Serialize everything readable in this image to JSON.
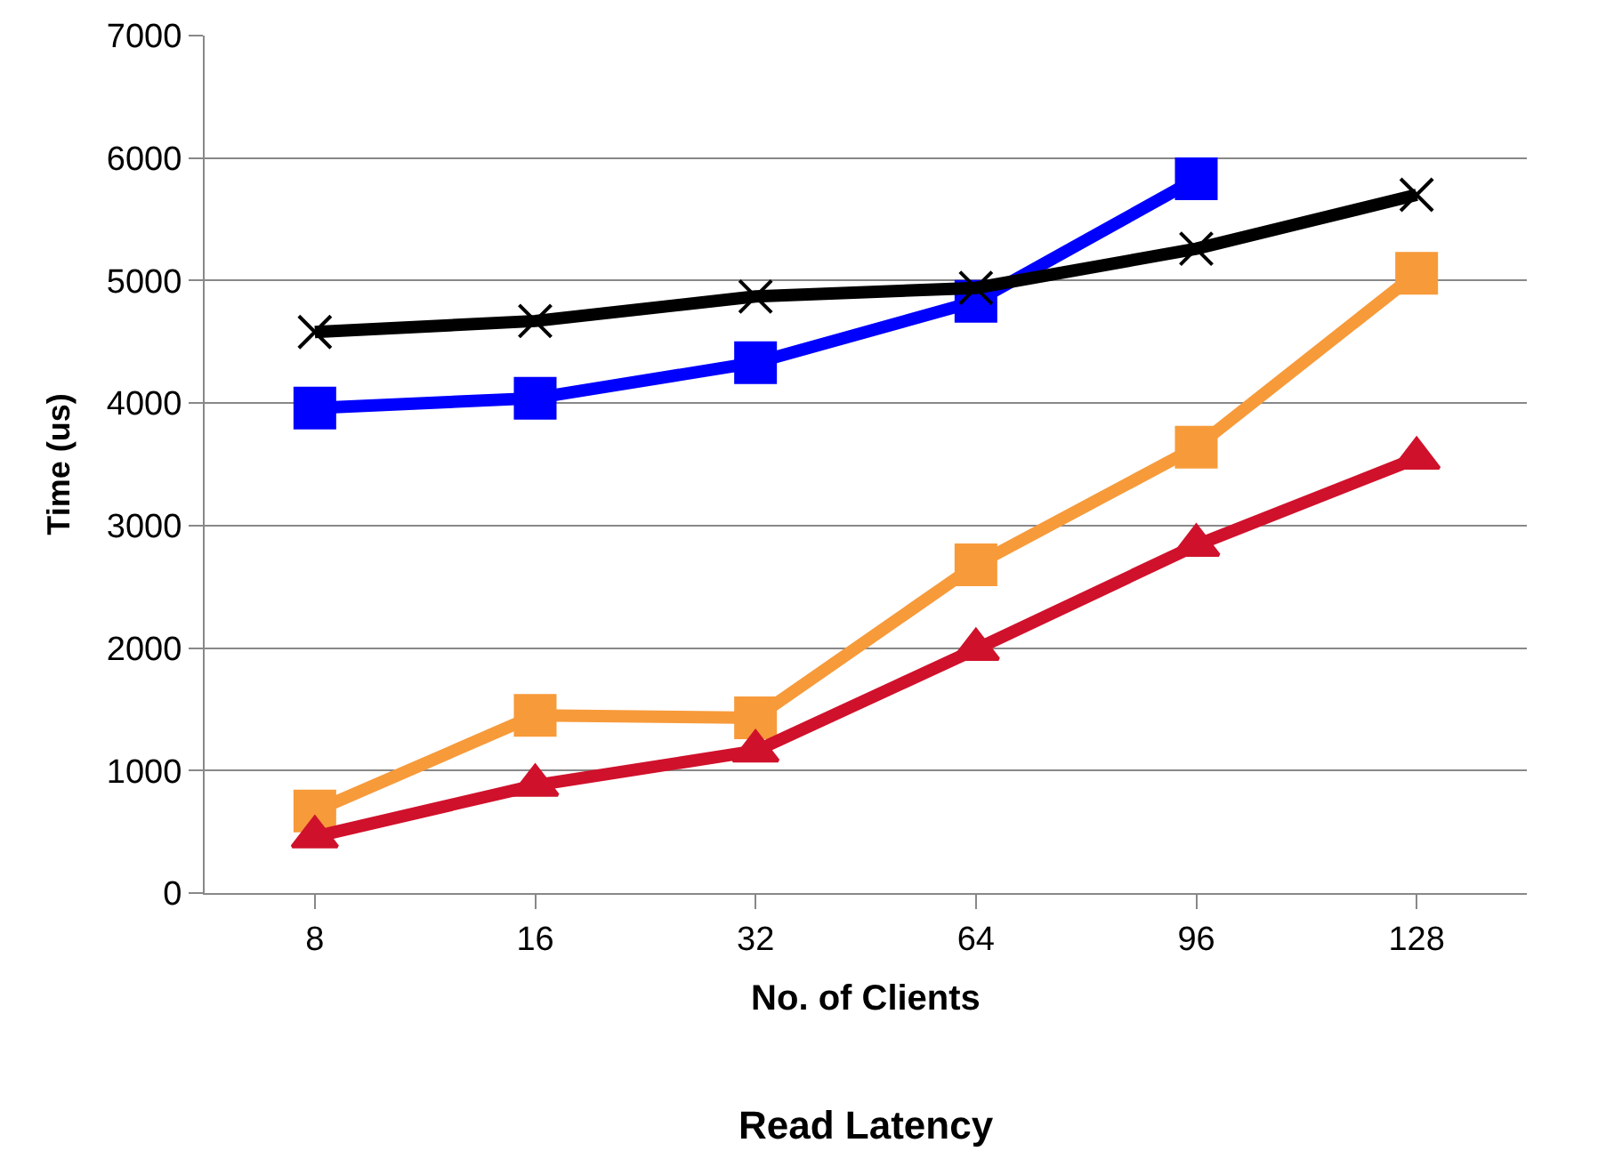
{
  "chart_data": {
    "type": "line",
    "title": "Read Latency",
    "xlabel": "No. of Clients",
    "ylabel": "Time (us)",
    "categories": [
      "8",
      "16",
      "32",
      "64",
      "96",
      "128"
    ],
    "series": [
      {
        "color": "#0000ff",
        "marker": "square",
        "values": [
          3960,
          4040,
          4330,
          4830,
          5830,
          null
        ]
      },
      {
        "color": "#000000",
        "marker": "cross",
        "values": [
          4580,
          4670,
          4870,
          4940,
          5260,
          5700
        ]
      },
      {
        "color": "#f79a3a",
        "marker": "square",
        "values": [
          670,
          1450,
          1430,
          2680,
          3640,
          5060
        ]
      },
      {
        "color": "#d0112b",
        "marker": "triangle",
        "values": [
          460,
          880,
          1160,
          1990,
          2840,
          3550
        ]
      }
    ],
    "ylim": [
      0,
      7000
    ],
    "yticks": [
      0,
      1000,
      2000,
      3000,
      4000,
      5000,
      6000,
      7000
    ],
    "grid": "y",
    "line_style": "solid"
  }
}
